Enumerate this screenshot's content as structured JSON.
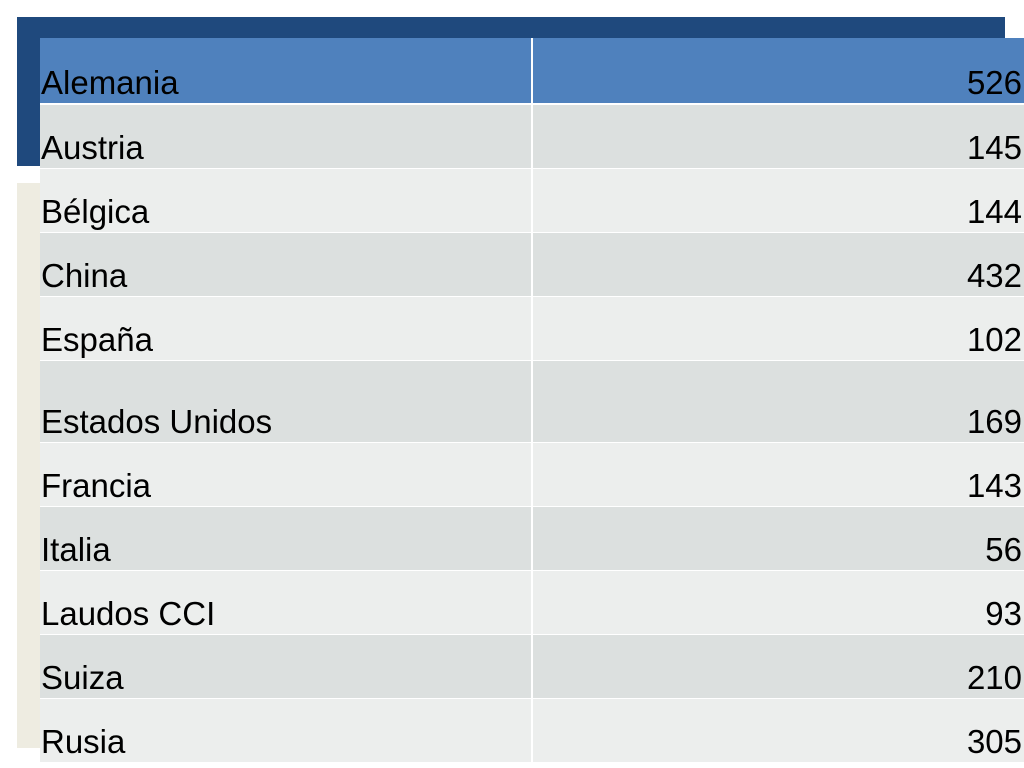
{
  "table": {
    "header": {
      "name": "Alemania",
      "value": "526"
    },
    "rows": [
      {
        "name": "Austria",
        "value": "145"
      },
      {
        "name": "Bélgica",
        "value": "144"
      },
      {
        "name": "China",
        "value": "432"
      },
      {
        "name": "España",
        "value": "102"
      },
      {
        "name": "Estados Unidos",
        "value": "169"
      },
      {
        "name": "Francia",
        "value": "143"
      },
      {
        "name": "Italia",
        "value": "56"
      },
      {
        "name": "Laudos CCI",
        "value": "93"
      },
      {
        "name": "Suiza",
        "value": "210"
      },
      {
        "name": "Rusia",
        "value": "305"
      }
    ]
  },
  "colors": {
    "accent_dark_blue": "#1f497d",
    "header_blue": "#4f81bd",
    "row_band_dark": "#dce0df",
    "row_band_light": "#eceeed",
    "side_bar_beige": "#eeece1"
  }
}
